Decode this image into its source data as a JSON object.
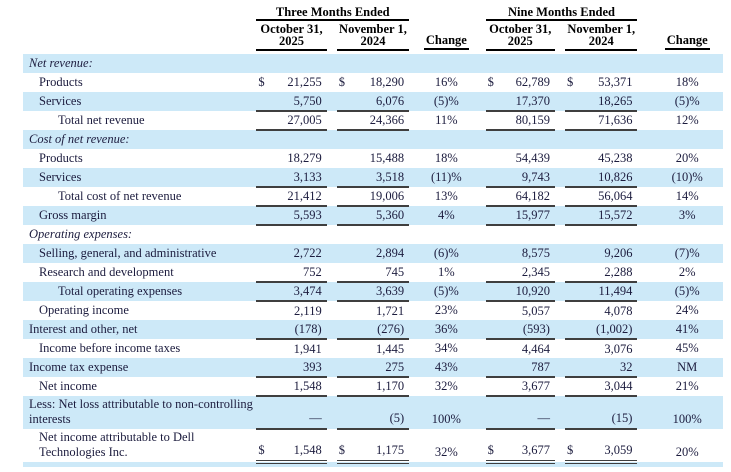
{
  "colors": {
    "row_shade": "#cde9f8",
    "text": "#1c1c3e",
    "rule": "#3f3f3f",
    "header_text": "#000000"
  },
  "header": {
    "groups": [
      {
        "label": "Three Months Ended"
      },
      {
        "label": "Nine Months Ended"
      }
    ],
    "col_oct": "October 31,\n2025",
    "col_nov": "November 1,\n2024",
    "col_change": "Change"
  },
  "rows": [
    {
      "label": "Net revenue:",
      "indent": 1,
      "italic": true,
      "shaded": true,
      "rule": "none",
      "dollar": false,
      "v": [
        "",
        "",
        "",
        ""
      ],
      "c": [
        "",
        ""
      ]
    },
    {
      "label": "Products",
      "indent": 2,
      "italic": false,
      "shaded": false,
      "rule": "none",
      "dollar": true,
      "v": [
        "21,255",
        "18,290",
        "62,789",
        "53,371"
      ],
      "c": [
        "16%",
        "18%"
      ]
    },
    {
      "label": "Services",
      "indent": 2,
      "italic": false,
      "shaded": true,
      "rule": "single",
      "dollar": false,
      "v": [
        "5,750",
        "6,076",
        "17,370",
        "18,265"
      ],
      "c": [
        "(5)%",
        "(5)%"
      ]
    },
    {
      "label": "Total net revenue",
      "indent": 3,
      "italic": false,
      "shaded": false,
      "rule": "single",
      "dollar": false,
      "v": [
        "27,005",
        "24,366",
        "80,159",
        "71,636"
      ],
      "c": [
        "11%",
        "12%"
      ]
    },
    {
      "label": "Cost of net revenue:",
      "indent": 1,
      "italic": true,
      "shaded": true,
      "rule": "none",
      "dollar": false,
      "v": [
        "",
        "",
        "",
        ""
      ],
      "c": [
        "",
        ""
      ]
    },
    {
      "label": "Products",
      "indent": 2,
      "italic": false,
      "shaded": false,
      "rule": "none",
      "dollar": false,
      "v": [
        "18,279",
        "15,488",
        "54,439",
        "45,238"
      ],
      "c": [
        "18%",
        "20%"
      ]
    },
    {
      "label": "Services",
      "indent": 2,
      "italic": false,
      "shaded": true,
      "rule": "single",
      "dollar": false,
      "v": [
        "3,133",
        "3,518",
        "9,743",
        "10,826"
      ],
      "c": [
        "(11)%",
        "(10)%"
      ]
    },
    {
      "label": "Total cost of net revenue",
      "indent": 3,
      "italic": false,
      "shaded": false,
      "rule": "single",
      "dollar": false,
      "v": [
        "21,412",
        "19,006",
        "64,182",
        "56,064"
      ],
      "c": [
        "13%",
        "14%"
      ]
    },
    {
      "label": "Gross margin",
      "indent": 2,
      "italic": false,
      "shaded": true,
      "rule": "single",
      "dollar": false,
      "v": [
        "5,593",
        "5,360",
        "15,977",
        "15,572"
      ],
      "c": [
        "4%",
        "3%"
      ]
    },
    {
      "label": "Operating expenses:",
      "indent": 1,
      "italic": true,
      "shaded": false,
      "rule": "none",
      "dollar": false,
      "v": [
        "",
        "",
        "",
        ""
      ],
      "c": [
        "",
        ""
      ]
    },
    {
      "label": "Selling, general, and administrative",
      "indent": 2,
      "italic": false,
      "shaded": true,
      "rule": "none",
      "dollar": false,
      "v": [
        "2,722",
        "2,894",
        "8,575",
        "9,206"
      ],
      "c": [
        "(6)%",
        "(7)%"
      ]
    },
    {
      "label": "Research and development",
      "indent": 2,
      "italic": false,
      "shaded": false,
      "rule": "single",
      "dollar": false,
      "v": [
        "752",
        "745",
        "2,345",
        "2,288"
      ],
      "c": [
        "1%",
        "2%"
      ]
    },
    {
      "label": "Total operating expenses",
      "indent": 3,
      "italic": false,
      "shaded": true,
      "rule": "single",
      "dollar": false,
      "v": [
        "3,474",
        "3,639",
        "10,920",
        "11,494"
      ],
      "c": [
        "(5)%",
        "(5)%"
      ]
    },
    {
      "label": "Operating income",
      "indent": 2,
      "italic": false,
      "shaded": false,
      "rule": "none",
      "dollar": false,
      "v": [
        "2,119",
        "1,721",
        "5,057",
        "4,078"
      ],
      "c": [
        "23%",
        "24%"
      ]
    },
    {
      "label": "Interest and other, net",
      "indent": 1,
      "italic": false,
      "shaded": true,
      "rule": "single",
      "dollar": false,
      "v": [
        "(178)",
        "(276)",
        "(593)",
        "(1,002)"
      ],
      "c": [
        "36%",
        "41%"
      ]
    },
    {
      "label": "Income before income taxes",
      "indent": 2,
      "italic": false,
      "shaded": false,
      "rule": "none",
      "dollar": false,
      "v": [
        "1,941",
        "1,445",
        "4,464",
        "3,076"
      ],
      "c": [
        "34%",
        "45%"
      ]
    },
    {
      "label": "Income tax expense",
      "indent": 1,
      "italic": false,
      "shaded": true,
      "rule": "single",
      "dollar": false,
      "v": [
        "393",
        "275",
        "787",
        "32"
      ],
      "c": [
        "43%",
        "NM"
      ]
    },
    {
      "label": "Net income",
      "indent": 2,
      "italic": false,
      "shaded": false,
      "rule": "single",
      "dollar": false,
      "v": [
        "1,548",
        "1,170",
        "3,677",
        "3,044"
      ],
      "c": [
        "32%",
        "21%"
      ]
    },
    {
      "label": "Less: Net loss attributable to non-controlling interests",
      "indent": 1,
      "italic": false,
      "shaded": true,
      "rule": "single",
      "dollar": false,
      "tall": true,
      "v": [
        "—",
        "(5)",
        "—",
        "(15)"
      ],
      "c": [
        "100%",
        "100%"
      ]
    },
    {
      "label": "Net income attributable to Dell Technologies Inc.",
      "indent": 2,
      "italic": false,
      "shaded": false,
      "rule": "double",
      "dollar": true,
      "tall": true,
      "v": [
        "1,548",
        "1,175",
        "3,677",
        "3,059"
      ],
      "c": [
        "32%",
        "20%"
      ]
    }
  ]
}
